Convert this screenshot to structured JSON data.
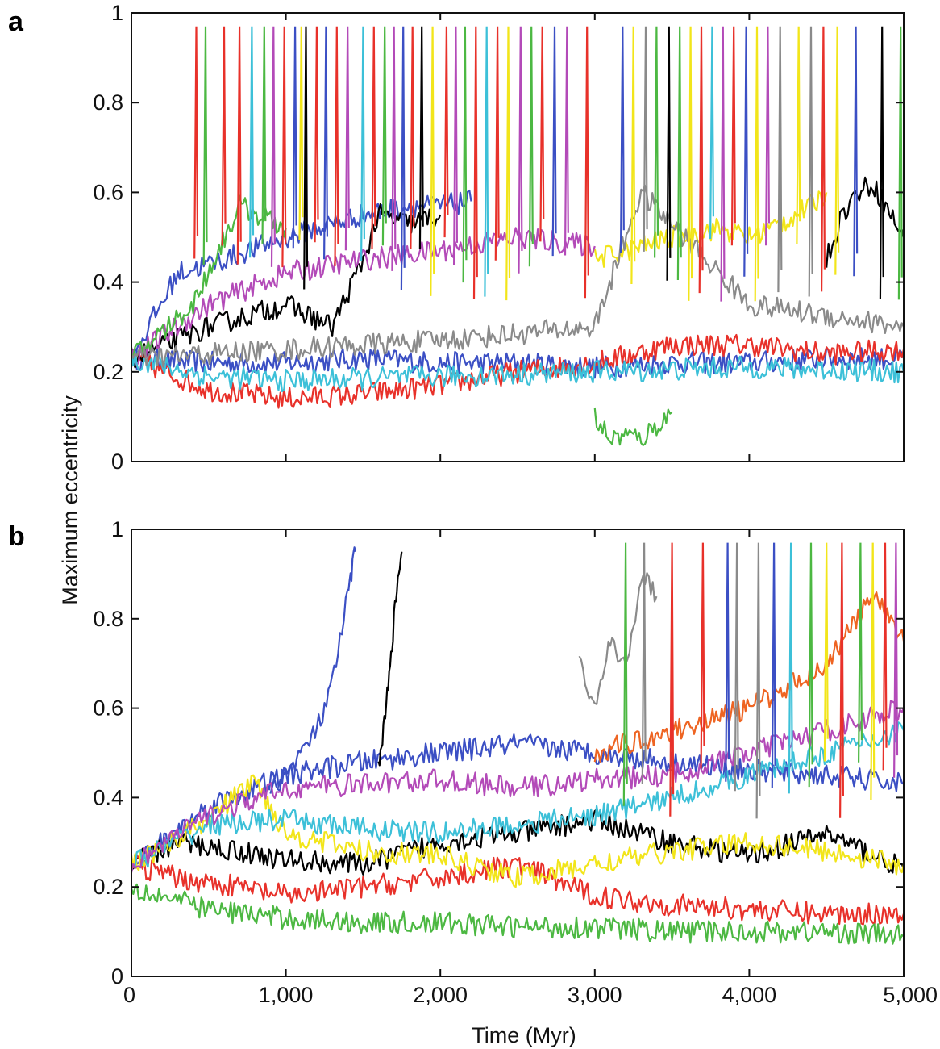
{
  "figure": {
    "ylabel": "Maximum eccentricity",
    "xlabel": "Time (Myr)"
  },
  "chart_data": [
    {
      "panel": "a",
      "type": "line",
      "xlim": [
        0,
        5000
      ],
      "ylim": [
        0,
        1
      ],
      "x_ticks": [
        0,
        1000,
        2000,
        3000,
        4000,
        5000
      ],
      "x_tick_labels": [
        "",
        "",
        "",
        "",
        "",
        ""
      ],
      "y_ticks": [
        0,
        0.2,
        0.4,
        0.6,
        0.8,
        1
      ],
      "y_tick_labels": [
        "0",
        "0.2",
        "0.4",
        "0.6",
        "0.8",
        "1"
      ],
      "ylabel": "Maximum eccentricity",
      "xlabel": "",
      "grid": false,
      "series": [
        {
          "color": "#3b4fc4",
          "x": [
            0,
            500,
            1000,
            1500,
            2000,
            2500,
            3000,
            3500,
            4000,
            4500,
            5000
          ],
          "y": [
            0.23,
            0.22,
            0.22,
            0.23,
            0.22,
            0.22,
            0.21,
            0.22,
            0.22,
            0.23,
            0.23
          ]
        },
        {
          "color": "#e8312a",
          "x": [
            0,
            500,
            1000,
            1500,
            2000,
            2500,
            3000,
            3500,
            4000,
            4500,
            5000
          ],
          "y": [
            0.23,
            0.16,
            0.14,
            0.15,
            0.17,
            0.2,
            0.22,
            0.26,
            0.26,
            0.24,
            0.25
          ]
        },
        {
          "color": "#3b4fc4",
          "x": [
            0,
            300,
            600,
            1000,
            1500,
            1800,
            2000,
            2200
          ],
          "y": [
            0.23,
            0.42,
            0.45,
            0.5,
            0.55,
            0.57,
            0.57,
            0.58
          ]
        },
        {
          "color": "#000000",
          "x": [
            0,
            500,
            1000,
            1300,
            1500,
            1600,
            1800,
            2000
          ],
          "y": [
            0.23,
            0.3,
            0.35,
            0.3,
            0.45,
            0.55,
            0.53,
            0.55
          ]
        },
        {
          "color": "#f2e51a",
          "x": [
            3000,
            3200,
            3500,
            3800,
            4000,
            4200,
            4400,
            4500
          ],
          "y": [
            0.45,
            0.47,
            0.5,
            0.52,
            0.5,
            0.53,
            0.57,
            0.6
          ]
        },
        {
          "color": "#000000",
          "x": [
            4500,
            4600,
            4700,
            4800,
            5000
          ],
          "y": [
            0.45,
            0.55,
            0.6,
            0.62,
            0.5
          ]
        },
        {
          "color": "#4cb842",
          "x": [
            3000,
            3100,
            3200,
            3300,
            3400,
            3500
          ],
          "y": [
            0.1,
            0.05,
            0.06,
            0.05,
            0.08,
            0.11
          ]
        },
        {
          "color": "#b34ab8",
          "x": [
            0,
            500,
            1000,
            1500,
            2000,
            2500,
            3000
          ],
          "y": [
            0.23,
            0.35,
            0.42,
            0.45,
            0.47,
            0.5,
            0.48
          ]
        },
        {
          "color": "#3cc0d8",
          "x": [
            0,
            500,
            1000,
            2000,
            3000,
            4000,
            5000
          ],
          "y": [
            0.23,
            0.19,
            0.18,
            0.19,
            0.2,
            0.21,
            0.2
          ]
        },
        {
          "color": "#4cb842",
          "x": [
            0,
            400,
            700,
            1000
          ],
          "y": [
            0.23,
            0.35,
            0.57,
            0.52
          ]
        },
        {
          "color": "#8a8a8a",
          "x": [
            0,
            1000,
            2000,
            3000,
            3300,
            4000,
            5000
          ],
          "y": [
            0.23,
            0.25,
            0.27,
            0.3,
            0.6,
            0.35,
            0.3
          ]
        }
      ],
      "spikes": [
        {
          "x": 420,
          "color": "#e8312a"
        },
        {
          "x": 480,
          "color": "#4cb842"
        },
        {
          "x": 600,
          "color": "#e8312a"
        },
        {
          "x": 700,
          "color": "#e8312a"
        },
        {
          "x": 780,
          "color": "#3cc0d8"
        },
        {
          "x": 860,
          "color": "#4cb842"
        },
        {
          "x": 920,
          "color": "#b34ab8"
        },
        {
          "x": 990,
          "color": "#e8312a"
        },
        {
          "x": 1060,
          "color": "#3b4fc4"
        },
        {
          "x": 1100,
          "color": "#f2e51a"
        },
        {
          "x": 1130,
          "color": "#000000"
        },
        {
          "x": 1200,
          "color": "#e8312a"
        },
        {
          "x": 1260,
          "color": "#3b4fc4"
        },
        {
          "x": 1330,
          "color": "#e8312a"
        },
        {
          "x": 1400,
          "color": "#b34ab8"
        },
        {
          "x": 1500,
          "color": "#3cc0d8"
        },
        {
          "x": 1570,
          "color": "#e8312a"
        },
        {
          "x": 1640,
          "color": "#4cb842"
        },
        {
          "x": 1700,
          "color": "#b34ab8"
        },
        {
          "x": 1760,
          "color": "#3b4fc4"
        },
        {
          "x": 1820,
          "color": "#e8312a"
        },
        {
          "x": 1880,
          "color": "#000000"
        },
        {
          "x": 1950,
          "color": "#f2e51a"
        },
        {
          "x": 2040,
          "color": "#e8312a"
        },
        {
          "x": 2100,
          "color": "#b34ab8"
        },
        {
          "x": 2160,
          "color": "#4cb842"
        },
        {
          "x": 2230,
          "color": "#e8312a"
        },
        {
          "x": 2300,
          "color": "#3cc0d8"
        },
        {
          "x": 2370,
          "color": "#e8312a"
        },
        {
          "x": 2440,
          "color": "#f2e51a"
        },
        {
          "x": 2520,
          "color": "#b34ab8"
        },
        {
          "x": 2590,
          "color": "#4cb842"
        },
        {
          "x": 2660,
          "color": "#e8312a"
        },
        {
          "x": 2740,
          "color": "#3b4fc4"
        },
        {
          "x": 2820,
          "color": "#b34ab8"
        },
        {
          "x": 2950,
          "color": "#e8312a"
        },
        {
          "x": 3180,
          "color": "#3b4fc4"
        },
        {
          "x": 3250,
          "color": "#f2e51a"
        },
        {
          "x": 3330,
          "color": "#8a8a8a"
        },
        {
          "x": 3400,
          "color": "#4cb842"
        },
        {
          "x": 3480,
          "color": "#000000"
        },
        {
          "x": 3550,
          "color": "#4cb842"
        },
        {
          "x": 3620,
          "color": "#f2e51a"
        },
        {
          "x": 3690,
          "color": "#e8312a"
        },
        {
          "x": 3760,
          "color": "#3cc0d8"
        },
        {
          "x": 3830,
          "color": "#b34ab8"
        },
        {
          "x": 3900,
          "color": "#e8312a"
        },
        {
          "x": 3980,
          "color": "#3b4fc4"
        },
        {
          "x": 4050,
          "color": "#f2e51a"
        },
        {
          "x": 4120,
          "color": "#b34ab8"
        },
        {
          "x": 4200,
          "color": "#8a8a8a"
        },
        {
          "x": 4320,
          "color": "#f2e51a"
        },
        {
          "x": 4400,
          "color": "#8a8a8a"
        },
        {
          "x": 4480,
          "color": "#e8312a"
        },
        {
          "x": 4570,
          "color": "#f2e51a"
        },
        {
          "x": 4690,
          "color": "#3b4fc4"
        },
        {
          "x": 4860,
          "color": "#000000"
        },
        {
          "x": 4980,
          "color": "#4cb842"
        }
      ]
    },
    {
      "panel": "b",
      "type": "line",
      "xlim": [
        0,
        5000
      ],
      "ylim": [
        0,
        1
      ],
      "x_ticks": [
        0,
        1000,
        2000,
        3000,
        4000,
        5000
      ],
      "x_tick_labels": [
        "0",
        "1,000",
        "2,000",
        "3,000",
        "4,000",
        "5,000"
      ],
      "y_ticks": [
        0,
        0.2,
        0.4,
        0.6,
        0.8,
        1
      ],
      "y_tick_labels": [
        "0",
        "0.2",
        "0.4",
        "0.6",
        "0.8",
        "1"
      ],
      "ylabel": "Maximum eccentricity",
      "xlabel": "Time (Myr)",
      "grid": false,
      "series": [
        {
          "color": "#3b4fc4",
          "x": [
            0,
            200,
            500,
            1000,
            1500,
            2000,
            2500,
            3000,
            3500,
            4000,
            4500,
            5000
          ],
          "y": [
            0.25,
            0.3,
            0.38,
            0.45,
            0.48,
            0.5,
            0.52,
            0.5,
            0.48,
            0.46,
            0.45,
            0.43
          ]
        },
        {
          "color": "#3b4fc4",
          "x": [
            900,
            1000,
            1200,
            1300,
            1400,
            1450
          ],
          "y": [
            0.42,
            0.45,
            0.55,
            0.65,
            0.85,
            0.95
          ]
        },
        {
          "color": "#000000",
          "x": [
            1600,
            1650,
            1700,
            1750
          ],
          "y": [
            0.48,
            0.6,
            0.8,
            0.95
          ]
        },
        {
          "color": "#000000",
          "x": [
            0,
            300,
            700,
            1000,
            1500,
            2000,
            2500,
            3000,
            3500,
            4000,
            4500,
            5000
          ],
          "y": [
            0.25,
            0.3,
            0.28,
            0.26,
            0.25,
            0.3,
            0.32,
            0.35,
            0.3,
            0.27,
            0.32,
            0.24
          ]
        },
        {
          "color": "#e8312a",
          "x": [
            0,
            300,
            700,
            1000,
            1500,
            2000,
            2500,
            3000,
            3500,
            4000,
            4500,
            5000
          ],
          "y": [
            0.25,
            0.22,
            0.2,
            0.18,
            0.2,
            0.22,
            0.25,
            0.18,
            0.16,
            0.15,
            0.14,
            0.14
          ]
        },
        {
          "color": "#4cb842",
          "x": [
            0,
            500,
            1000,
            1500,
            2000,
            2500,
            3000,
            3500,
            4000,
            4500,
            5000
          ],
          "y": [
            0.2,
            0.15,
            0.13,
            0.12,
            0.12,
            0.11,
            0.11,
            0.1,
            0.1,
            0.1,
            0.09
          ]
        },
        {
          "color": "#f2e51a",
          "x": [
            0,
            500,
            800,
            1000,
            1500,
            2000,
            2500,
            3000,
            3500,
            4000,
            4500,
            5000
          ],
          "y": [
            0.25,
            0.35,
            0.44,
            0.32,
            0.28,
            0.27,
            0.22,
            0.25,
            0.28,
            0.3,
            0.28,
            0.25
          ]
        },
        {
          "color": "#3cc0d8",
          "x": [
            0,
            500,
            1000,
            1500,
            2000,
            2500,
            3000,
            3500,
            4000,
            4500,
            5000
          ],
          "y": [
            0.25,
            0.34,
            0.35,
            0.33,
            0.32,
            0.34,
            0.36,
            0.4,
            0.45,
            0.5,
            0.55
          ]
        },
        {
          "color": "#b34ab8",
          "x": [
            0,
            500,
            1000,
            1500,
            2000,
            2500,
            3000,
            3500,
            4000,
            4500,
            5000
          ],
          "y": [
            0.25,
            0.36,
            0.42,
            0.43,
            0.44,
            0.42,
            0.44,
            0.45,
            0.5,
            0.55,
            0.6
          ]
        },
        {
          "color": "#8a8a8a",
          "x": [
            2900,
            3000,
            3100,
            3200,
            3300,
            3400
          ],
          "y": [
            0.7,
            0.6,
            0.75,
            0.68,
            0.9,
            0.85
          ]
        },
        {
          "color": "#ee6422",
          "x": [
            3000,
            3500,
            4000,
            4500,
            4800,
            5000
          ],
          "y": [
            0.5,
            0.55,
            0.6,
            0.7,
            0.85,
            0.75
          ]
        }
      ],
      "spikes": [
        {
          "x": 3200,
          "color": "#4cb842"
        },
        {
          "x": 3320,
          "color": "#8a8a8a"
        },
        {
          "x": 3500,
          "color": "#e8312a"
        },
        {
          "x": 3700,
          "color": "#e8312a"
        },
        {
          "x": 3860,
          "color": "#3b4fc4"
        },
        {
          "x": 3920,
          "color": "#8a8a8a"
        },
        {
          "x": 4060,
          "color": "#8a8a8a"
        },
        {
          "x": 4160,
          "color": "#3b4fc4"
        },
        {
          "x": 4270,
          "color": "#3cc0d8"
        },
        {
          "x": 4400,
          "color": "#4cb842"
        },
        {
          "x": 4500,
          "color": "#f2e51a"
        },
        {
          "x": 4600,
          "color": "#e8312a"
        },
        {
          "x": 4720,
          "color": "#4cb842"
        },
        {
          "x": 4800,
          "color": "#f2e51a"
        },
        {
          "x": 4880,
          "color": "#e8312a"
        },
        {
          "x": 4950,
          "color": "#b34ab8"
        }
      ]
    }
  ]
}
